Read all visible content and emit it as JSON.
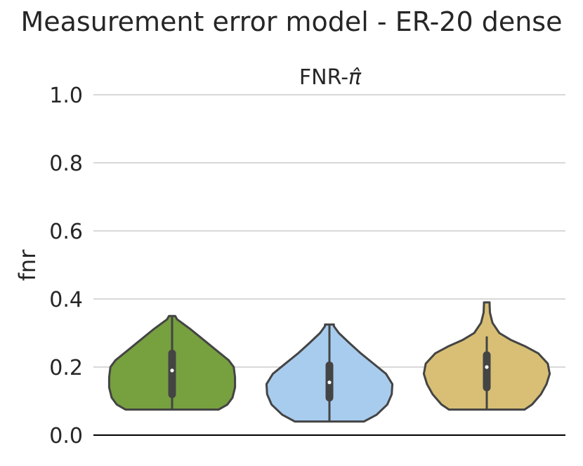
{
  "chart_data": {
    "type": "violin",
    "title": "Measurement error model - ER-20 dense",
    "subtitle_prefix": "FNR-",
    "subtitle_symbol": "π̂",
    "xlabel": "",
    "ylabel": "fnr",
    "ylim": [
      0,
      1.0
    ],
    "yticks": [
      "0.0",
      "0.2",
      "0.4",
      "0.6",
      "0.8",
      "1.0"
    ],
    "grid": true,
    "violins": [
      {
        "color": "#77A03F",
        "min": 0.075,
        "max": 0.35,
        "q1": 0.12,
        "median": 0.19,
        "q3": 0.24,
        "whisker_low": 0.075,
        "whisker_high": 0.35,
        "profile": [
          [
            0.075,
            0.74
          ],
          [
            0.09,
            0.88
          ],
          [
            0.11,
            0.96
          ],
          [
            0.14,
            1.0
          ],
          [
            0.17,
            1.0
          ],
          [
            0.2,
            0.98
          ],
          [
            0.22,
            0.9
          ],
          [
            0.25,
            0.7
          ],
          [
            0.28,
            0.5
          ],
          [
            0.31,
            0.3
          ],
          [
            0.34,
            0.08
          ],
          [
            0.35,
            0.05
          ]
        ]
      },
      {
        "color": "#A8CCEE",
        "min": 0.04,
        "max": 0.325,
        "q1": 0.11,
        "median": 0.155,
        "q3": 0.205,
        "whisker_low": 0.04,
        "whisker_high": 0.325,
        "profile": [
          [
            0.04,
            0.55
          ],
          [
            0.06,
            0.75
          ],
          [
            0.09,
            0.92
          ],
          [
            0.12,
            0.99
          ],
          [
            0.15,
            1.0
          ],
          [
            0.18,
            0.9
          ],
          [
            0.21,
            0.7
          ],
          [
            0.24,
            0.5
          ],
          [
            0.27,
            0.32
          ],
          [
            0.3,
            0.15
          ],
          [
            0.32,
            0.07
          ],
          [
            0.325,
            0.07
          ]
        ]
      },
      {
        "color": "#D8BF75",
        "min": 0.075,
        "max": 0.39,
        "q1": 0.14,
        "median": 0.2,
        "q3": 0.235,
        "whisker_low": 0.075,
        "whisker_high": 0.29,
        "profile": [
          [
            0.075,
            0.6
          ],
          [
            0.09,
            0.72
          ],
          [
            0.12,
            0.86
          ],
          [
            0.15,
            0.95
          ],
          [
            0.18,
            1.0
          ],
          [
            0.21,
            0.97
          ],
          [
            0.24,
            0.82
          ],
          [
            0.26,
            0.62
          ],
          [
            0.28,
            0.38
          ],
          [
            0.3,
            0.2
          ],
          [
            0.33,
            0.09
          ],
          [
            0.36,
            0.05
          ],
          [
            0.385,
            0.045
          ],
          [
            0.39,
            0.045
          ]
        ]
      }
    ]
  }
}
